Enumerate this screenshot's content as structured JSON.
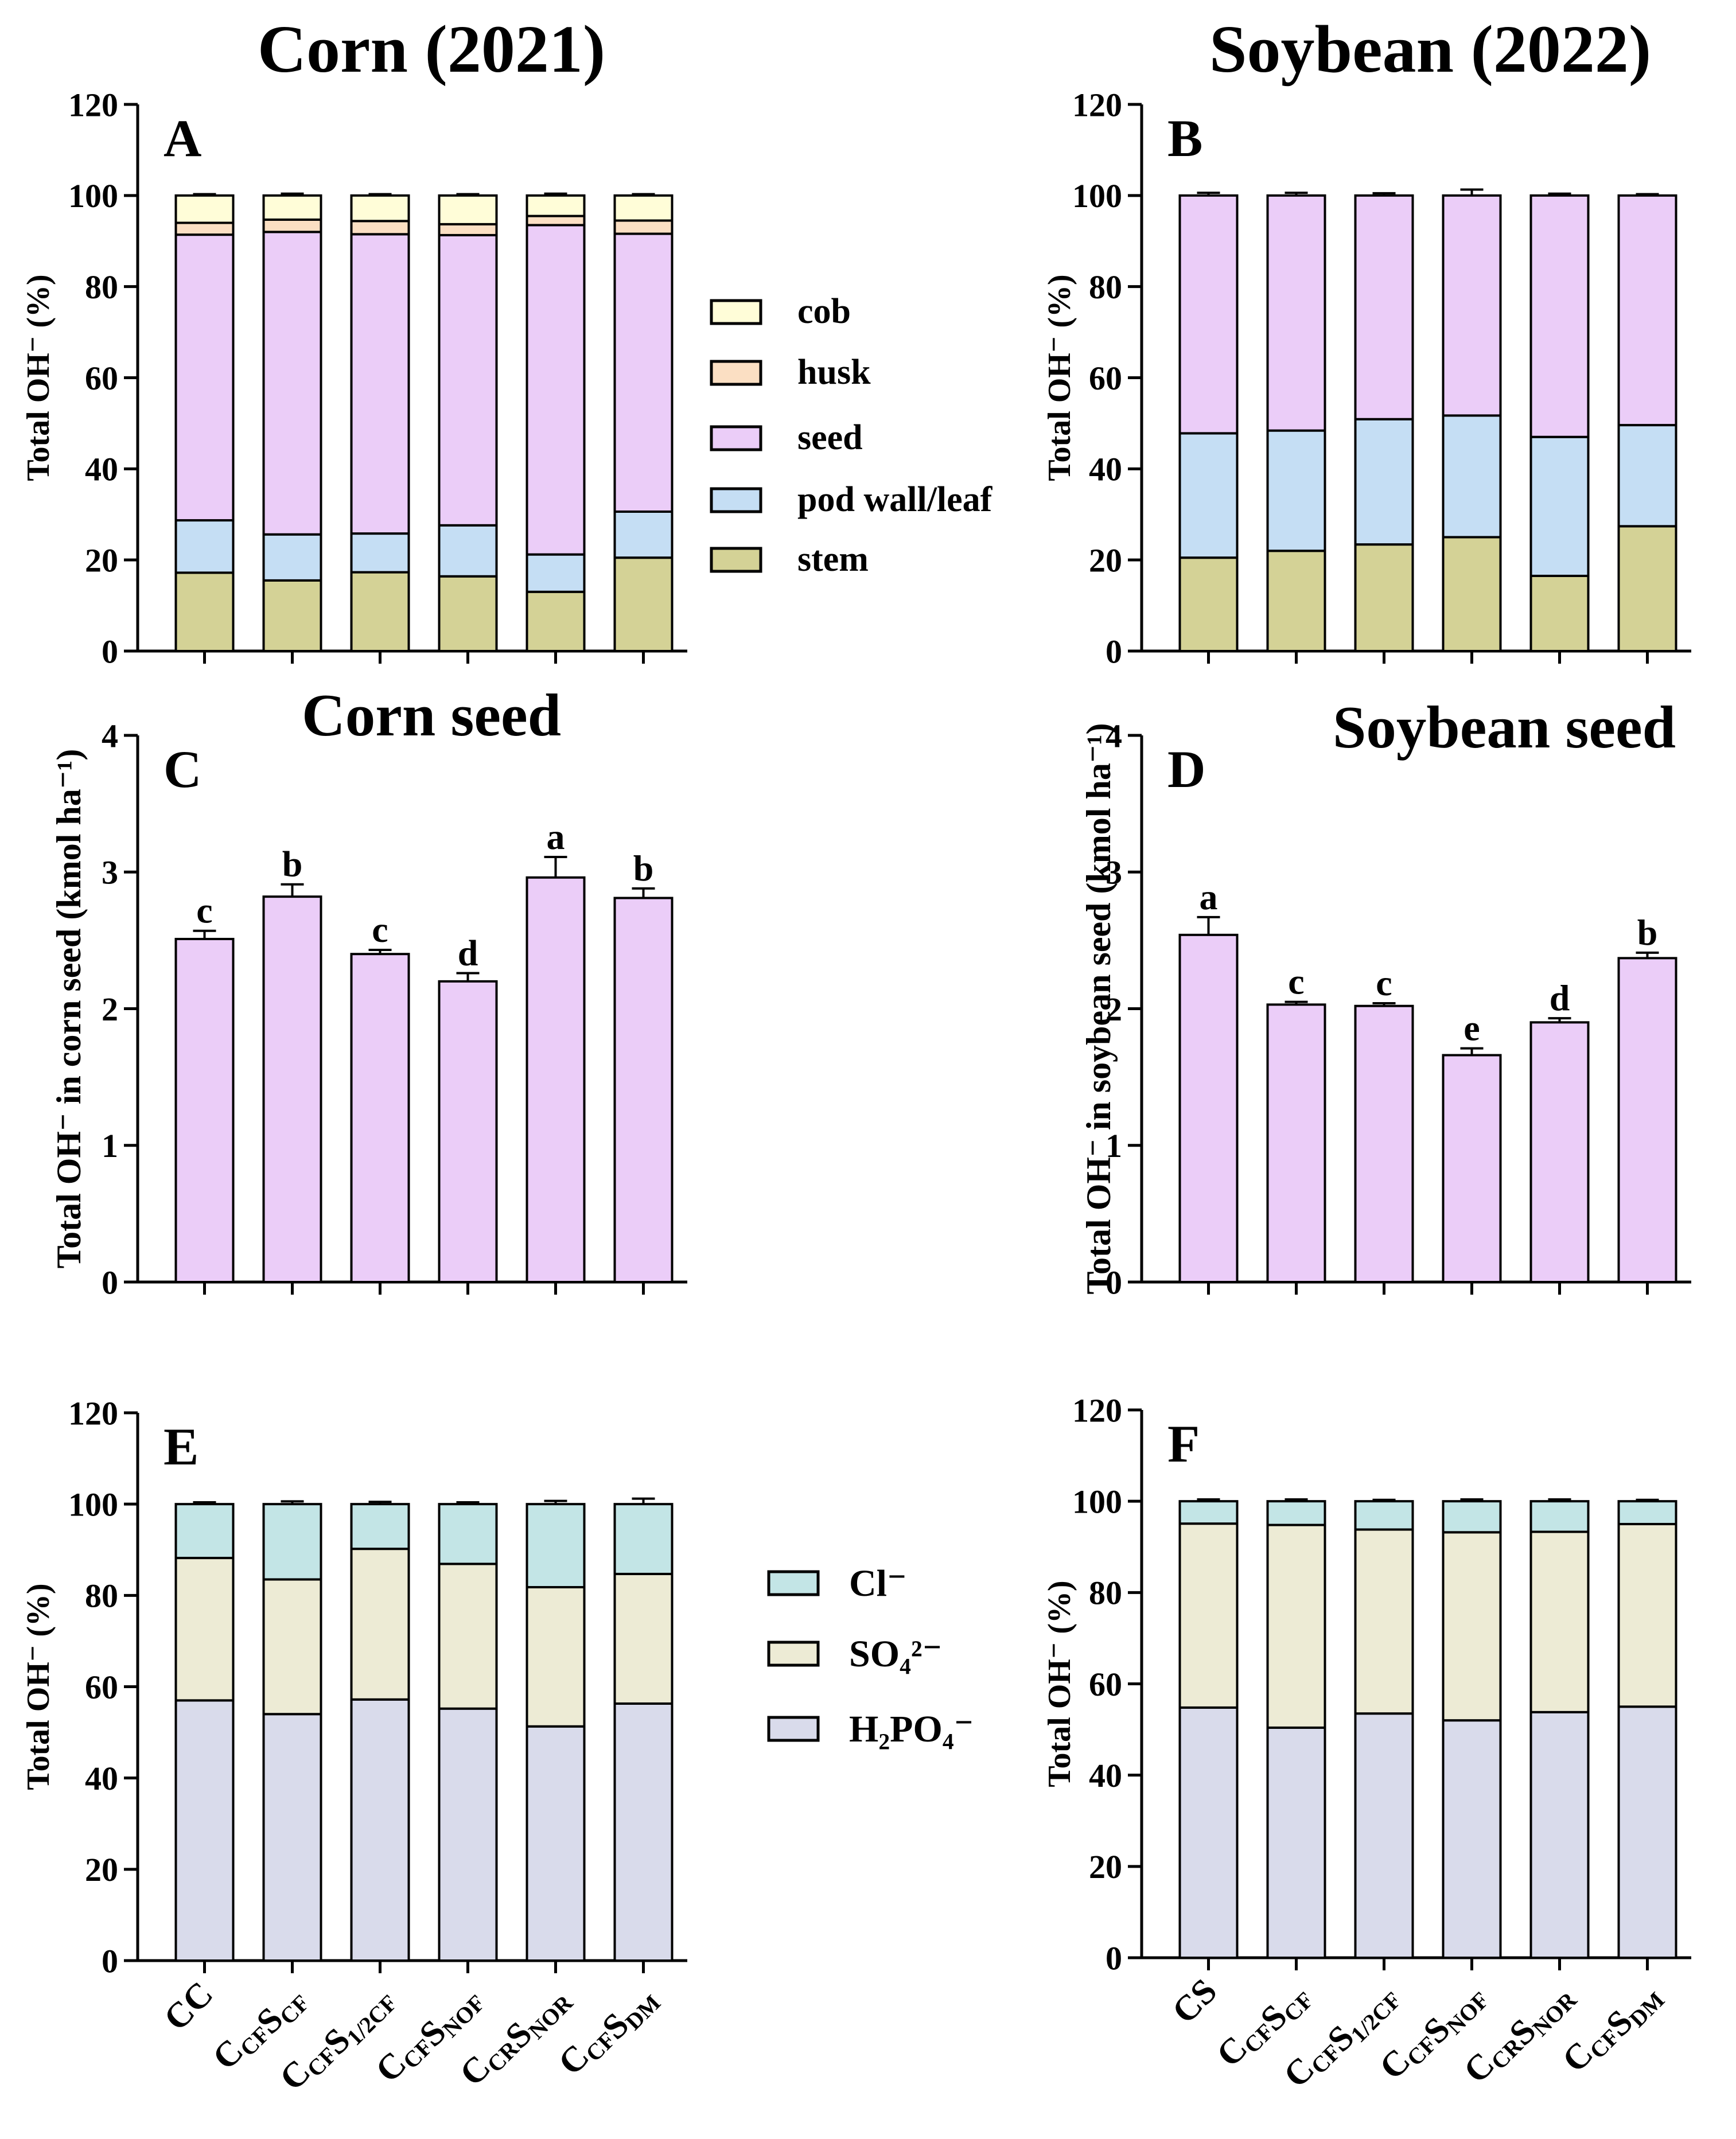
{
  "figure": {
    "titles": [
      "Corn (2021)",
      "Soybean (2022)",
      "Corn seed",
      "Soybean seed"
    ],
    "colors": {
      "cob": "#FFFDD8",
      "husk": "#FBDFC3",
      "seed": "#EBCDF8",
      "pod wall/leaf": "#C5DEF4",
      "stem": "#D4D296",
      "Cl⁻": "#C3E5E6",
      "SO₄²⁻": "#EDEBD5",
      "H₂PO₄⁻": "#D9DBEB"
    }
  },
  "legends": {
    "organs": [
      "cob",
      "husk",
      "seed",
      "pod wall/leaf",
      "stem"
    ],
    "anions": [
      "Cl⁻",
      "SO₄²⁻",
      "H₂PO₄⁻"
    ]
  },
  "chart_data": [
    {
      "panel": "A",
      "type": "bar",
      "stacked": true,
      "title": "Corn (2021)",
      "ylabel": "Total OH⁻ (%)",
      "ylim": [
        0,
        120
      ],
      "yticks": [
        0,
        20,
        40,
        60,
        80,
        100,
        120
      ],
      "categories": [
        "CC",
        "C_CF S_CF",
        "C_CF S_1/2CF",
        "C_CF S_NOF",
        "C_CR S_NOR",
        "C_CF S_DM"
      ],
      "series": [
        {
          "name": "stem",
          "values": [
            17.2,
            15.5,
            17.3,
            16.4,
            13.0,
            20.5
          ],
          "errors": [
            1.0,
            0.7,
            0.8,
            0.6,
            0.8,
            1.3
          ]
        },
        {
          "name": "pod wall/leaf",
          "values": [
            11.5,
            10.1,
            8.5,
            11.2,
            8.2,
            10.1
          ],
          "errors": [
            0.6,
            0.4,
            0.5,
            0.4,
            0.5,
            0.5
          ]
        },
        {
          "name": "seed",
          "values": [
            62.7,
            66.4,
            65.7,
            63.7,
            72.3,
            61.0
          ],
          "errors": [
            0.8,
            0.8,
            0.7,
            0.6,
            0.9,
            0.9
          ]
        },
        {
          "name": "husk",
          "values": [
            2.6,
            2.7,
            2.9,
            2.4,
            2.0,
            2.9
          ],
          "errors": [
            0.3,
            0.3,
            0.3,
            0.3,
            0.3,
            0.3
          ]
        },
        {
          "name": "cob",
          "values": [
            6.0,
            5.3,
            5.6,
            6.3,
            4.5,
            5.5
          ],
          "errors": [
            0.3,
            0.4,
            0.3,
            0.3,
            0.4,
            0.3
          ]
        }
      ]
    },
    {
      "panel": "B",
      "type": "bar",
      "stacked": true,
      "title": "Soybean (2022)",
      "ylabel": "Total OH⁻ (%)",
      "ylim": [
        0,
        120
      ],
      "yticks": [
        0,
        20,
        40,
        60,
        80,
        100,
        120
      ],
      "categories": [
        "CS",
        "C_CF S_CF",
        "C_CF S_1/2CF",
        "C_CF S_NOF",
        "C_CR S_NOR",
        "C_CF S_DM"
      ],
      "series": [
        {
          "name": "stem",
          "values": [
            20.5,
            22.0,
            23.4,
            25.0,
            16.5,
            27.4
          ],
          "errors": [
            0.6,
            0.5,
            0.7,
            0.4,
            0.4,
            0.4
          ]
        },
        {
          "name": "pod wall/leaf",
          "values": [
            27.3,
            26.4,
            27.5,
            26.7,
            30.5,
            22.2
          ],
          "errors": [
            1.0,
            0.8,
            0.9,
            1.2,
            0.5,
            0.4
          ]
        },
        {
          "name": "seed",
          "values": [
            52.2,
            51.6,
            49.1,
            48.3,
            53.0,
            50.4
          ],
          "errors": [
            0.6,
            0.6,
            0.5,
            1.3,
            0.4,
            0.3
          ]
        }
      ]
    },
    {
      "panel": "C",
      "type": "bar",
      "title": "Corn seed",
      "ylabel": "Total OH⁻ in corn seed (kmol ha⁻¹)",
      "ylim": [
        0,
        4
      ],
      "yticks": [
        0,
        1,
        2,
        3,
        4
      ],
      "categories": [
        "CC",
        "C_CF S_CF",
        "C_CF S_1/2CF",
        "C_CF S_NOF",
        "C_CR S_NOR",
        "C_CF S_DM"
      ],
      "values": [
        2.51,
        2.82,
        2.4,
        2.2,
        2.96,
        2.81
      ],
      "errors": [
        0.06,
        0.09,
        0.03,
        0.06,
        0.15,
        0.07
      ],
      "letters": [
        "c",
        "b",
        "c",
        "d",
        "a",
        "b"
      ]
    },
    {
      "panel": "D",
      "type": "bar",
      "title": "Soybean seed",
      "ylabel": "Total OH⁻ in soybean seed (kmol ha⁻¹)",
      "ylim": [
        0,
        4
      ],
      "yticks": [
        0,
        1,
        2,
        3,
        4
      ],
      "categories": [
        "CS",
        "C_CF S_CF",
        "C_CF S_1/2CF",
        "C_CF S_NOF",
        "C_CR S_NOR",
        "C_CF S_DM"
      ],
      "values": [
        2.54,
        2.03,
        2.02,
        1.66,
        1.9,
        2.37
      ],
      "errors": [
        0.13,
        0.02,
        0.02,
        0.05,
        0.03,
        0.04
      ],
      "letters": [
        "a",
        "c",
        "c",
        "e",
        "d",
        "b"
      ]
    },
    {
      "panel": "E",
      "type": "bar",
      "stacked": true,
      "title": "",
      "ylabel": "Total OH⁻ (%)",
      "ylim": [
        0,
        120
      ],
      "yticks": [
        0,
        20,
        40,
        60,
        80,
        100,
        120
      ],
      "categories": [
        "CC",
        "C_CF S_CF",
        "C_CF S_1/2CF",
        "C_CF S_NOF",
        "C_CR S_NOR",
        "C_CF S_DM"
      ],
      "series": [
        {
          "name": "H₂PO₄⁻",
          "values": [
            57.0,
            54.0,
            57.2,
            55.2,
            51.3,
            56.3
          ],
          "errors": [
            0.8,
            1.1,
            2.2,
            1.0,
            0.9,
            1.2
          ]
        },
        {
          "name": "SO₄²⁻",
          "values": [
            31.2,
            29.5,
            33.0,
            31.7,
            30.5,
            28.4
          ],
          "errors": [
            1.2,
            0.8,
            2.1,
            1.0,
            1.1,
            1.0
          ]
        },
        {
          "name": "Cl⁻",
          "values": [
            11.8,
            16.5,
            9.8,
            13.1,
            18.2,
            15.3
          ],
          "errors": [
            0.4,
            0.6,
            0.5,
            0.4,
            0.7,
            1.2
          ]
        }
      ]
    },
    {
      "panel": "F",
      "type": "bar",
      "stacked": true,
      "title": "",
      "ylabel": "Total OH⁻ (%)",
      "ylim": [
        0,
        120
      ],
      "yticks": [
        0,
        20,
        40,
        60,
        80,
        100,
        120
      ],
      "categories": [
        "CS",
        "C_CF S_CF",
        "C_CF S_1/2CF",
        "C_CF S_NOF",
        "C_CR S_NOR",
        "C_CF S_DM"
      ],
      "series": [
        {
          "name": "H₂PO₄⁻",
          "values": [
            54.8,
            50.4,
            53.5,
            52.0,
            53.8,
            55.0
          ],
          "errors": [
            1.2,
            0.5,
            0.4,
            1.1,
            0.9,
            0.3
          ]
        },
        {
          "name": "SO₄²⁻",
          "values": [
            40.3,
            44.4,
            40.3,
            41.2,
            39.5,
            40.0
          ],
          "errors": [
            0.9,
            0.5,
            0.4,
            1.0,
            0.6,
            0.5
          ]
        },
        {
          "name": "Cl⁻",
          "values": [
            4.9,
            5.2,
            6.2,
            6.8,
            6.7,
            5.0
          ],
          "errors": [
            0.4,
            0.4,
            0.3,
            0.4,
            0.4,
            0.3
          ]
        }
      ]
    }
  ]
}
